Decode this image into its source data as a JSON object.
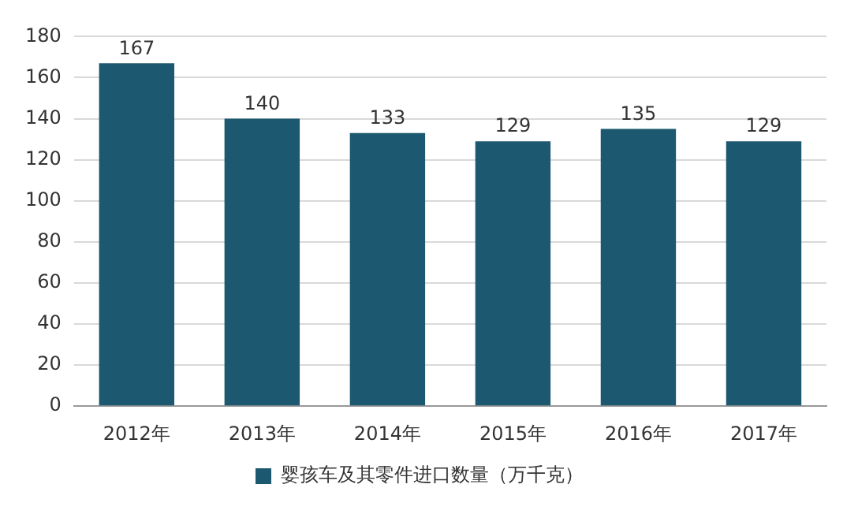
{
  "chart_data": {
    "type": "bar",
    "categories": [
      "2012年",
      "2013年",
      "2014年",
      "2015年",
      "2016年",
      "2017年"
    ],
    "series": [
      {
        "name": "婴孩车及其零件进口数量（万千克）",
        "color": "#1c5870",
        "values": [
          167,
          140,
          133,
          129,
          135,
          129
        ]
      }
    ],
    "ylim": [
      0,
      180
    ],
    "yticks": [
      0,
      20,
      40,
      60,
      80,
      100,
      120,
      140,
      160,
      180
    ],
    "grid": "y",
    "legend": "bottom",
    "data_labels": true
  }
}
